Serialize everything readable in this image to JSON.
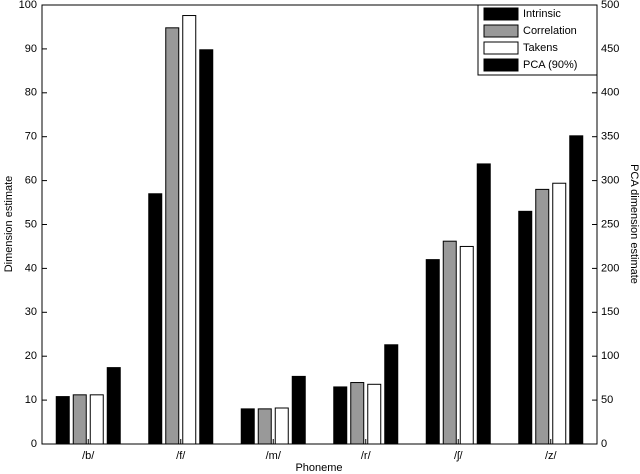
{
  "chart_data": {
    "type": "bar",
    "x_label": "Phoneme",
    "y_label": "Dimension estimate",
    "y2_label": "PCA dimension estimate",
    "categories": [
      "/b/",
      "/f/",
      "/m/",
      "/r/",
      "/ʃ/",
      "/z/"
    ],
    "series": [
      {
        "name": "Intrinsic",
        "color": "#000000",
        "values": [
          10.8,
          57,
          8,
          13,
          42,
          53
        ]
      },
      {
        "name": "Correlation",
        "color": "#999999",
        "values": [
          11.2,
          94.8,
          8,
          14,
          46.2,
          58
        ]
      },
      {
        "name": "Takens",
        "color": "#ffffff",
        "values": [
          11.2,
          97.6,
          8.2,
          13.6,
          45,
          59.4
        ]
      },
      {
        "name": "PCA (90%)",
        "color": "#000000",
        "axis": "y2",
        "values": [
          87,
          449,
          77,
          113,
          319,
          351
        ]
      }
    ],
    "ylim": [
      0,
      100
    ],
    "yticks": [
      0,
      10,
      20,
      30,
      40,
      50,
      60,
      70,
      80,
      90,
      100
    ],
    "y2lim": [
      0,
      500
    ],
    "y2ticks": [
      0,
      50,
      100,
      150,
      200,
      250,
      300,
      350,
      400,
      450,
      500
    ],
    "legend": "upper right"
  }
}
